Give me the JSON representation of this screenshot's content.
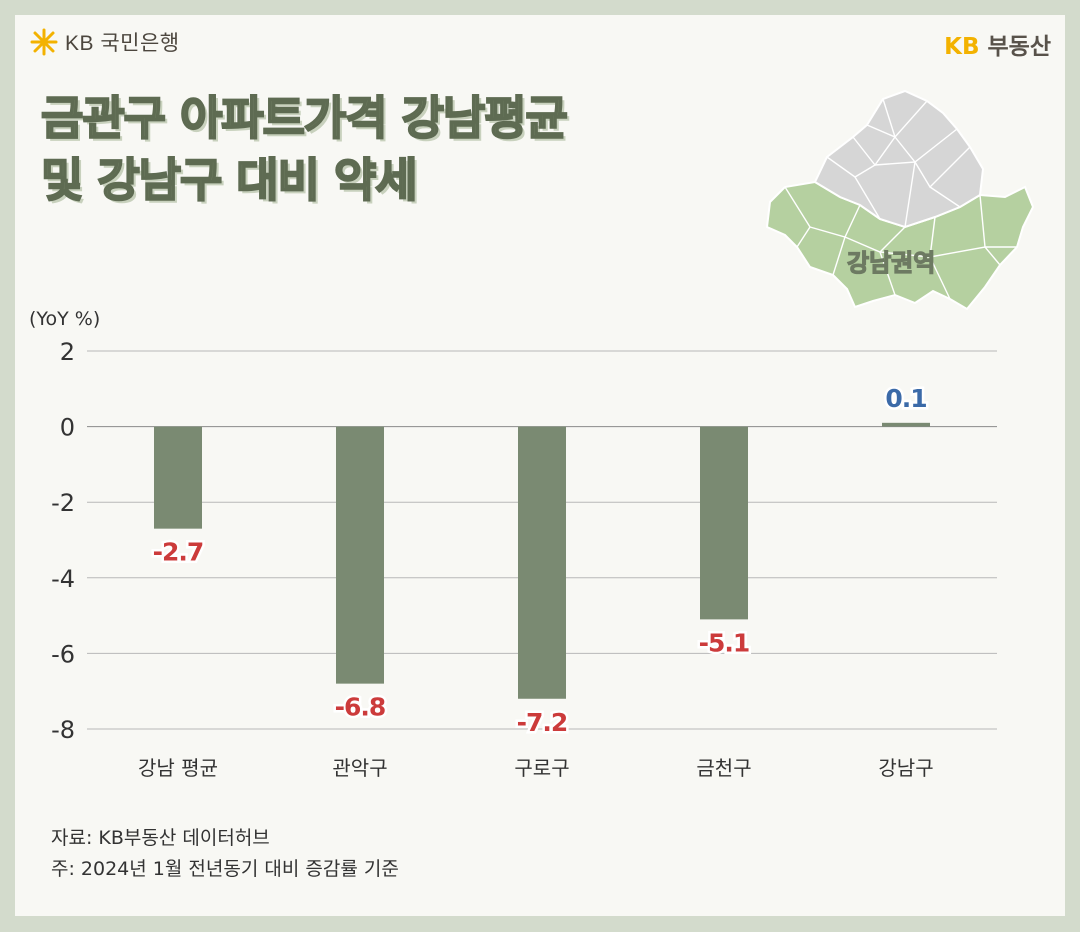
{
  "brand_left": "KB 국민은행",
  "brand_right": {
    "kb": "KB",
    "name": "부동산"
  },
  "title_lines": [
    "금관구 아파트가격 강남평균",
    "및 강남구 대비 약세"
  ],
  "map_label": "강남권역",
  "colors": {
    "bar": "#7a8a72",
    "negative_label": "#cc3b3b",
    "positive_label": "#3b6aa8",
    "map_gray": "#d6d6d6",
    "map_green": "#b5d0a0"
  },
  "chart_data": {
    "type": "bar",
    "unit_label": "(YoY %)",
    "categories": [
      "강남 평균",
      "관악구",
      "구로구",
      "금천구",
      "강남구"
    ],
    "values": [
      -2.7,
      -6.8,
      -7.2,
      -5.1,
      0.1
    ],
    "value_labels": [
      "-2.7",
      "-6.8",
      "-7.2",
      "-5.1",
      "0.1"
    ],
    "ylim": [
      -8,
      2
    ],
    "yticks": [
      2,
      0,
      -2,
      -4,
      -6,
      -8
    ],
    "grid": true
  },
  "source_lines": [
    "자료: KB부동산 데이터허브",
    "주: 2024년 1월 전년동기 대비 증감률 기준"
  ]
}
